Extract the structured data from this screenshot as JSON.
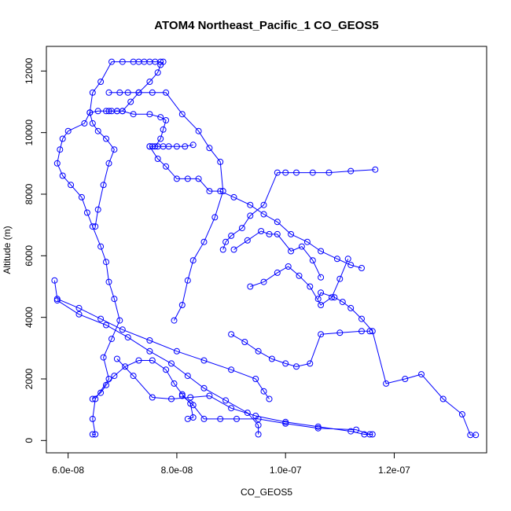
{
  "chart_data": {
    "type": "scatter",
    "title": "ATOM4 Northeast_Pacific_1 CO_GEOS5",
    "xlabel": "CO_GEOS5",
    "ylabel": "Altitude (m)",
    "xlim": [
      5.6e-08,
      1.37e-07
    ],
    "ylim": [
      -400,
      12800
    ],
    "x_ticks": [
      6e-08,
      8e-08,
      1e-07,
      1.2e-07
    ],
    "x_tick_labels": [
      "6.0e-08",
      "8.0e-08",
      "1.0e-07",
      "1.2e-07"
    ],
    "y_ticks": [
      0,
      2000,
      4000,
      6000,
      8000,
      10000,
      12000
    ],
    "y_tick_labels": [
      "0",
      "2000",
      "4000",
      "6000",
      "8000",
      "10000",
      "12000"
    ],
    "grid": false,
    "color": "#0000ff",
    "marker": "open-circle",
    "connected": true,
    "series": [
      {
        "x": [
          6.45e-08,
          6.5e-08,
          6.45e-08,
          6.5e-08,
          6.75e-08,
          6.65e-08,
          6.8e-08,
          6.95e-08,
          6.85e-08,
          6.75e-08,
          6.7e-08,
          6.6e-08,
          6.45e-08,
          6.35e-08,
          6.25e-08,
          6.05e-08,
          5.9e-08,
          5.8e-08,
          5.85e-08,
          5.9e-08,
          6e-08,
          6.3e-08,
          6.4e-08,
          6.55e-08,
          6.7e-08,
          6.8e-08,
          6.9e-08,
          7e-08,
          7.15e-08,
          7.3e-08,
          7.5e-08,
          7.65e-08,
          7.7e-08,
          7.75e-08
        ],
        "y": [
          200,
          200,
          700,
          1350,
          2000,
          2700,
          3300,
          3900,
          4600,
          5150,
          5800,
          6300,
          6950,
          7400,
          7900,
          8300,
          8600,
          9000,
          9450,
          9800,
          10050,
          10300,
          10650,
          10700,
          10700,
          10700,
          10700,
          10700,
          11000,
          11300,
          11650,
          11950,
          12200,
          12300
        ]
      },
      {
        "x": [
          7.7e-08,
          7.6e-08,
          7.5e-08,
          7.4e-08,
          7.3e-08,
          7.2e-08,
          7e-08,
          6.8e-08,
          6.6e-08,
          6.45e-08,
          6.4e-08,
          6.45e-08,
          6.55e-08,
          6.7e-08,
          6.85e-08,
          6.75e-08,
          6.65e-08,
          6.55e-08,
          6.5e-08
        ],
        "y": [
          12300,
          12300,
          12300,
          12300,
          12300,
          12300,
          12300,
          12300,
          11650,
          11300,
          10650,
          10300,
          10050,
          9800,
          9450,
          9000,
          8300,
          7500,
          6950
        ]
      },
      {
        "x": [
          6.75e-08,
          6.95e-08,
          7.1e-08,
          7.3e-08,
          7.55e-08,
          7.8e-08,
          8.1e-08,
          8.4e-08,
          8.6e-08,
          8.8e-08,
          8.85e-08,
          8.7e-08,
          8.5e-08,
          8.3e-08,
          8.2e-08,
          8.1e-08,
          7.95e-08
        ],
        "y": [
          11300,
          11300,
          11300,
          11300,
          11300,
          11300,
          10600,
          10050,
          9500,
          9050,
          8100,
          7250,
          6450,
          5850,
          5200,
          4400,
          3900
        ]
      },
      {
        "x": [
          6.75e-08,
          6.9e-08,
          7e-08,
          7.2e-08,
          7.5e-08,
          7.7e-08,
          7.8e-08,
          7.75e-08,
          7.7e-08,
          7.6e-08,
          7.5e-08,
          7.55e-08,
          7.65e-08,
          7.75e-08,
          7.85e-08,
          8e-08,
          8.15e-08,
          8.3e-08
        ],
        "y": [
          10700,
          10700,
          10700,
          10600,
          10600,
          10500,
          10400,
          10100,
          9800,
          9550,
          9550,
          9550,
          9550,
          9550,
          9550,
          9550,
          9550,
          9600
        ]
      },
      {
        "x": [
          7.5e-08,
          7.65e-08,
          7.8e-08,
          8e-08,
          8.2e-08,
          8.4e-08,
          8.6e-08,
          8.8e-08,
          9.05e-08,
          9.35e-08,
          9.6e-08,
          9.85e-08,
          1.01e-07,
          1.04e-07,
          1.065e-07,
          1.095e-07,
          1.12e-07,
          1.14e-07
        ],
        "y": [
          9550,
          9150,
          8900,
          8500,
          8500,
          8500,
          8100,
          8100,
          7900,
          7650,
          7350,
          7100,
          6700,
          6450,
          6150,
          5900,
          5700,
          5600
        ]
      },
      {
        "x": [
          1.165e-07,
          1.12e-07,
          1.08e-07,
          1.05e-07,
          1.02e-07,
          1e-07,
          9.85e-08,
          9.6e-08,
          9.35e-08,
          9.2e-08,
          9e-08,
          8.9e-08,
          8.85e-08
        ],
        "y": [
          8800,
          8750,
          8700,
          8700,
          8700,
          8700,
          8700,
          7650,
          7300,
          6900,
          6650,
          6450,
          6200
        ]
      },
      {
        "x": [
          9.05e-08,
          9.3e-08,
          9.55e-08,
          9.7e-08,
          9.85e-08,
          1.01e-07,
          1.03e-07,
          1.05e-07,
          1.065e-07
        ],
        "y": [
          6200,
          6500,
          6800,
          6700,
          6700,
          6150,
          6300,
          5850,
          5300
        ]
      },
      {
        "x": [
          9.35e-08,
          9.6e-08,
          9.85e-08,
          1.005e-07,
          1.025e-07,
          1.045e-07,
          1.065e-07,
          1.085e-07,
          1.1e-07,
          1.115e-07
        ],
        "y": [
          5000,
          5150,
          5450,
          5650,
          5350,
          5000,
          4400,
          4650,
          5250,
          5900
        ]
      },
      {
        "x": [
          1.06e-07,
          1.065e-07,
          1.09e-07,
          1.105e-07,
          1.12e-07,
          1.14e-07,
          1.16e-07,
          1.185e-07,
          1.22e-07,
          1.25e-07,
          1.29e-07,
          1.325e-07,
          1.34e-07,
          1.35e-07
        ],
        "y": [
          4600,
          4800,
          4650,
          4500,
          4300,
          3950,
          3550,
          1850,
          2000,
          2150,
          1350,
          850,
          180,
          180
        ]
      },
      {
        "x": [
          9e-08,
          9.25e-08,
          9.5e-08,
          9.75e-08,
          1e-07,
          1.02e-07,
          1.045e-07,
          1.065e-07,
          1.1e-07,
          1.14e-07,
          1.155e-07
        ],
        "y": [
          3450,
          3200,
          2900,
          2650,
          2500,
          2400,
          2500,
          3450,
          3500,
          3550,
          3550
        ]
      },
      {
        "x": [
          5.75e-08,
          5.8e-08,
          6.2e-08,
          6.6e-08,
          7e-08,
          7.5e-08,
          8e-08,
          8.5e-08,
          9e-08,
          9.45e-08,
          9.6e-08,
          9.7e-08
        ],
        "y": [
          5200,
          4600,
          4300,
          3950,
          3600,
          3250,
          2900,
          2600,
          2300,
          2000,
          1600,
          1350
        ]
      },
      {
        "x": [
          5.8e-08,
          6.2e-08,
          6.7e-08,
          7.1e-08,
          7.5e-08,
          7.9e-08,
          8.2e-08,
          8.5e-08,
          8.9e-08,
          9.3e-08,
          9.5e-08,
          9.5e-08
        ],
        "y": [
          4550,
          4100,
          3750,
          3350,
          2900,
          2500,
          2100,
          1700,
          1300,
          900,
          500,
          200
        ]
      },
      {
        "x": [
          6.9e-08,
          7.2e-08,
          7.55e-08,
          7.9e-08,
          8.25e-08,
          8.6e-08,
          9e-08,
          9.45e-08,
          1e-07,
          1.06e-07,
          1.12e-07,
          1.145e-07,
          1.16e-07
        ],
        "y": [
          2650,
          2100,
          1400,
          1350,
          1400,
          1450,
          1050,
          800,
          600,
          450,
          300,
          200,
          200
        ]
      },
      {
        "x": [
          8.1e-08,
          8.3e-08,
          8.5e-08,
          8.8e-08,
          9.1e-08,
          9.5e-08,
          1e-07,
          1.06e-07,
          1.13e-07,
          1.155e-07
        ],
        "y": [
          1450,
          1150,
          700,
          700,
          700,
          700,
          550,
          400,
          350,
          200
        ]
      },
      {
        "x": [
          6.45e-08,
          6.6e-08,
          6.7e-08,
          6.85e-08,
          7.05e-08,
          7.3e-08,
          7.55e-08,
          7.8e-08,
          7.95e-08,
          8.1e-08,
          8.25e-08,
          8.3e-08,
          8.2e-08
        ],
        "y": [
          1350,
          1550,
          1800,
          2100,
          2400,
          2600,
          2600,
          2300,
          1850,
          1500,
          1200,
          750,
          700
        ]
      }
    ]
  }
}
